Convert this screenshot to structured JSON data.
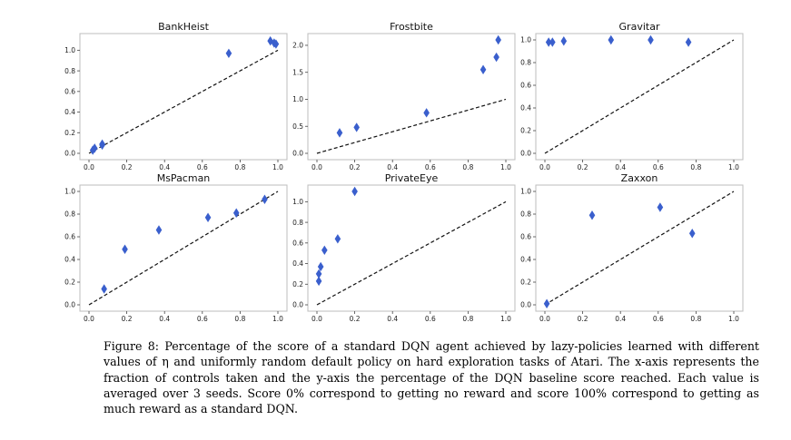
{
  "caption": "Figure 8: Percentage of the score of a standard DQN agent achieved by lazy-policies learned with different values of η and uniformly random default policy on hard exploration tasks of Atari. The x-axis represents the fraction of controls taken and the y-axis the percentage of the DQN baseline score reached. Each value is averaged over 3 seeds. Score 0% correspond to getting no reward and score 100% correspond to getting as much reward as a standard DQN.",
  "colors": {
    "marker": "#3a5fcd",
    "reference_line": "#111111",
    "frame": "#bdbdbd"
  },
  "chart_data": [
    {
      "type": "scatter",
      "title": "BankHeist",
      "xlabel": "",
      "ylabel": "",
      "xlim": [
        0.0,
        1.0
      ],
      "ylim": [
        0.0,
        1.1
      ],
      "xticks": [
        "0.0",
        "0.2",
        "0.4",
        "0.6",
        "0.8",
        "1.0"
      ],
      "yticks": [
        "0.0",
        "0.2",
        "0.4",
        "0.6",
        "0.8",
        "1.0"
      ],
      "reference_line": "y = x",
      "grid": false,
      "points": [
        [
          0.02,
          0.03
        ],
        [
          0.03,
          0.05
        ],
        [
          0.07,
          0.08
        ],
        [
          0.07,
          0.09
        ],
        [
          0.74,
          0.97
        ],
        [
          0.96,
          1.09
        ],
        [
          0.98,
          1.07
        ],
        [
          0.99,
          1.06
        ]
      ]
    },
    {
      "type": "scatter",
      "title": "Frostbite",
      "xlabel": "",
      "ylabel": "",
      "xlim": [
        0.0,
        1.0
      ],
      "ylim": [
        0.0,
        2.1
      ],
      "xticks": [
        "0.0",
        "0.2",
        "0.4",
        "0.6",
        "0.8",
        "1.0"
      ],
      "yticks": [
        "0.0",
        "0.5",
        "1.0",
        "1.5",
        "2.0"
      ],
      "reference_line": "y = x",
      "grid": false,
      "points": [
        [
          0.12,
          0.38
        ],
        [
          0.21,
          0.48
        ],
        [
          0.58,
          0.75
        ],
        [
          0.88,
          1.55
        ],
        [
          0.95,
          1.78
        ],
        [
          0.96,
          2.1
        ]
      ]
    },
    {
      "type": "scatter",
      "title": "Gravitar",
      "xlabel": "",
      "ylabel": "",
      "xlim": [
        0.0,
        1.0
      ],
      "ylim": [
        0.0,
        1.0
      ],
      "xticks": [
        "0.0",
        "0.2",
        "0.4",
        "0.6",
        "0.8",
        "1.0"
      ],
      "yticks": [
        "0.0",
        "0.2",
        "0.4",
        "0.6",
        "0.8",
        "1.0"
      ],
      "reference_line": "y = x",
      "grid": false,
      "points": [
        [
          0.02,
          0.98
        ],
        [
          0.04,
          0.98
        ],
        [
          0.1,
          0.99
        ],
        [
          0.35,
          1.0
        ],
        [
          0.56,
          1.0
        ],
        [
          0.76,
          0.98
        ]
      ]
    },
    {
      "type": "scatter",
      "title": "MsPacman",
      "xlabel": "",
      "ylabel": "",
      "xlim": [
        0.0,
        1.0
      ],
      "ylim": [
        0.0,
        1.0
      ],
      "xticks": [
        "0.0",
        "0.2",
        "0.4",
        "0.6",
        "0.8",
        "1.0"
      ],
      "yticks": [
        "0.0",
        "0.2",
        "0.4",
        "0.6",
        "0.8",
        "1.0"
      ],
      "reference_line": "y = x",
      "grid": false,
      "points": [
        [
          0.08,
          0.14
        ],
        [
          0.19,
          0.49
        ],
        [
          0.37,
          0.66
        ],
        [
          0.63,
          0.77
        ],
        [
          0.78,
          0.81
        ],
        [
          0.93,
          0.93
        ]
      ]
    },
    {
      "type": "scatter",
      "title": "PrivateEye",
      "xlabel": "",
      "ylabel": "",
      "xlim": [
        0.0,
        1.0
      ],
      "ylim": [
        0.0,
        1.1
      ],
      "xticks": [
        "0.0",
        "0.2",
        "0.4",
        "0.6",
        "0.8",
        "1.0"
      ],
      "yticks": [
        "0.0",
        "0.2",
        "0.4",
        "0.6",
        "0.8",
        "1.0"
      ],
      "reference_line": "y = x",
      "grid": false,
      "points": [
        [
          0.01,
          0.23
        ],
        [
          0.01,
          0.3
        ],
        [
          0.02,
          0.37
        ],
        [
          0.04,
          0.53
        ],
        [
          0.11,
          0.64
        ],
        [
          0.2,
          1.1
        ]
      ]
    },
    {
      "type": "scatter",
      "title": "Zaxxon",
      "xlabel": "",
      "ylabel": "",
      "xlim": [
        0.0,
        1.0
      ],
      "ylim": [
        0.0,
        1.0
      ],
      "xticks": [
        "0.0",
        "0.2",
        "0.4",
        "0.6",
        "0.8",
        "1.0"
      ],
      "yticks": [
        "0.0",
        "0.2",
        "0.4",
        "0.6",
        "0.8",
        "1.0"
      ],
      "reference_line": "y = x",
      "grid": false,
      "points": [
        [
          0.01,
          0.01
        ],
        [
          0.25,
          0.79
        ],
        [
          0.61,
          0.86
        ],
        [
          0.78,
          0.63
        ]
      ]
    }
  ]
}
